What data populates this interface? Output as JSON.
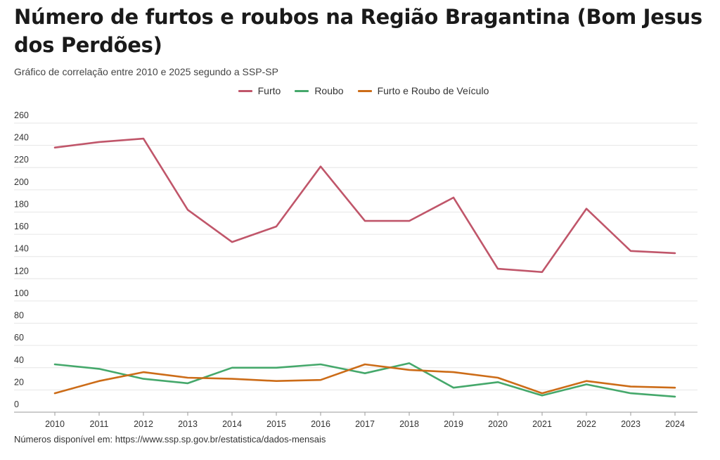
{
  "header": {
    "title": "Número de furtos e roubos na Região Bragantina (Bom Jesus dos Perdões)",
    "subtitle": "Gráfico de correlação entre 2010 e 2025 segundo a SSP-SP"
  },
  "footer": {
    "source": "Números disponível em: https://www.ssp.sp.gov.br/estatistica/dados-mensais"
  },
  "chart_data": {
    "type": "line",
    "x": [
      "2010",
      "2011",
      "2012",
      "2013",
      "2014",
      "2015",
      "2016",
      "2017",
      "2018",
      "2019",
      "2020",
      "2021",
      "2022",
      "2023",
      "2024"
    ],
    "ylim": [
      0,
      260
    ],
    "yticks": [
      0,
      20,
      40,
      60,
      80,
      100,
      120,
      140,
      160,
      180,
      200,
      220,
      240,
      260
    ],
    "grid": true,
    "legend_position": "top-center",
    "series": [
      {
        "name": "Furto",
        "color": "#c0566a",
        "values": [
          238,
          243,
          246,
          182,
          153,
          167,
          221,
          172,
          172,
          193,
          129,
          126,
          183,
          145,
          143
        ]
      },
      {
        "name": "Roubo",
        "color": "#45a86b",
        "values": [
          43,
          39,
          30,
          26,
          40,
          40,
          43,
          35,
          44,
          22,
          27,
          15,
          25,
          17,
          14
        ]
      },
      {
        "name": "Furto e Roubo de Veículo",
        "color": "#cc6c18",
        "values": [
          17,
          28,
          36,
          31,
          30,
          28,
          29,
          43,
          38,
          36,
          31,
          17,
          28,
          23,
          22
        ]
      }
    ]
  }
}
